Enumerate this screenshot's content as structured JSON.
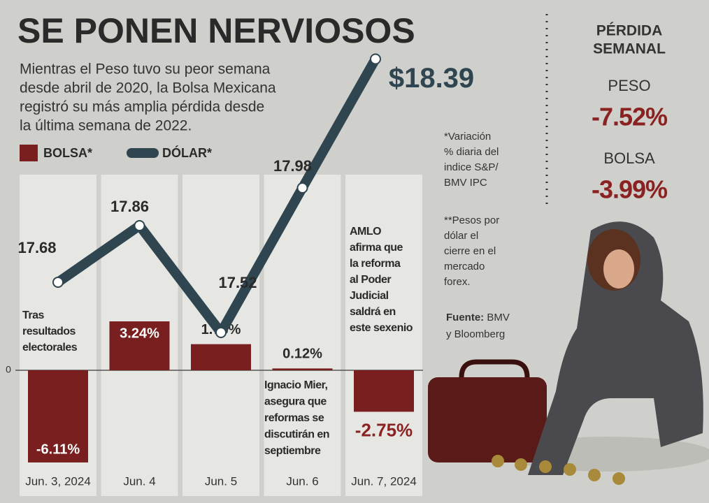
{
  "chart_data": {
    "type": "bar-line",
    "title": "SE PONEN NERVIOSOS",
    "subtitle": [
      "Mientras el Peso tuvo su peor semana",
      "desde abril de 2020, la Bolsa Mexicana",
      "registró su más amplia pérdida desde",
      "la última semana de 2022."
    ],
    "categories": [
      "Jun. 3, 2024",
      "Jun. 4",
      "Jun. 5",
      "Jun. 6",
      "Jun. 7, 2024"
    ],
    "series": [
      {
        "name": "BOLSA*",
        "color": "#7a1f1f",
        "values": [
          -6.11,
          3.24,
          1.73,
          0.12,
          -2.75
        ],
        "value_labels": [
          "-6.11%",
          "3.24%",
          "1.73%",
          "0.12%",
          "-2.75%"
        ]
      },
      {
        "name": "DÓLAR*",
        "color": "#2f4550",
        "axis": "y2",
        "values": [
          17.68,
          17.86,
          17.52,
          17.98,
          18.39
        ],
        "value_labels": [
          "17.68",
          "17.86",
          "17.52",
          "17.98",
          "$18.39"
        ]
      }
    ],
    "ylim": [
      -7.5,
      12.5
    ],
    "yticks": [
      0
    ],
    "y2lim": [
      17.04,
      18.0
    ],
    "notes": [
      [
        "Tras",
        "resultados",
        "electorales"
      ],
      null,
      null,
      [
        "Ignacio Mier,",
        "asegura que",
        "reformas se",
        "discutirán en",
        "septiembre"
      ],
      [
        "AMLO",
        "afirma que",
        "la reforma",
        "al Poder",
        "Judicial",
        "saldrá en",
        "este sexenio"
      ]
    ],
    "footnotes": [
      [
        "*Variación",
        "% diaria del",
        "indice S&P/",
        "BMV IPC"
      ],
      [
        "**Pesos por",
        "dólar el",
        "cierre en el",
        "mercado",
        "forex."
      ]
    ],
    "source": {
      "label": "Fuente:",
      "lines": [
        " BMV",
        "y Bloomberg"
      ]
    },
    "side_panel": {
      "title": [
        "PÉRDIDA",
        "SEMANAL"
      ],
      "items": [
        {
          "name": "PESO",
          "value": "-7.52%"
        },
        {
          "name": "BOLSA",
          "value": "-3.99%"
        }
      ]
    }
  }
}
